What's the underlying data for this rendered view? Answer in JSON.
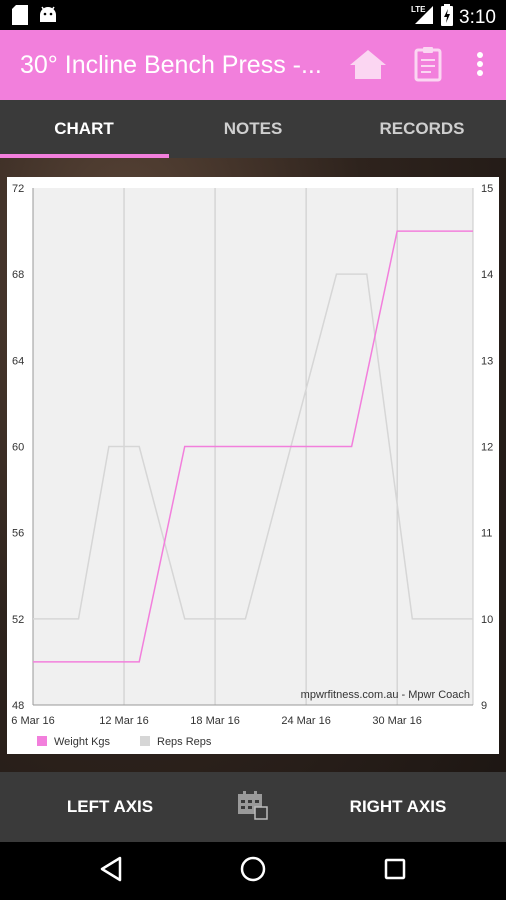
{
  "status_bar": {
    "time": "3:10",
    "network": "LTE",
    "left_icons": [
      "sd-card-icon",
      "android-icon"
    ],
    "right_icons": [
      "lte-signal-icon",
      "battery-charging-icon"
    ]
  },
  "app_bar": {
    "title": "30° Incline Bench Press -...",
    "actions": [
      "home-icon",
      "clipboard-icon",
      "more-vert-icon"
    ],
    "color": "#f27fdc"
  },
  "tabs": [
    {
      "label": "CHART",
      "active": true
    },
    {
      "label": "NOTES",
      "active": false
    },
    {
      "label": "RECORDS",
      "active": false
    }
  ],
  "chart_data": {
    "type": "line",
    "x_tick_labels": [
      "6 Mar 16",
      "12 Mar 16",
      "18 Mar 16",
      "24 Mar 16",
      "30 Mar 16"
    ],
    "x_range": [
      6,
      35
    ],
    "left_axis": {
      "ylim": [
        48,
        72
      ],
      "ticks": [
        48,
        52,
        56,
        60,
        64,
        68,
        72
      ]
    },
    "right_axis": {
      "ylim": [
        9,
        15
      ],
      "ticks": [
        9,
        10,
        11,
        12,
        13,
        14,
        15
      ]
    },
    "grid": true,
    "legend_position": "bottom-left",
    "watermark": "mpwrfitness.com.au - Mpwr Coach",
    "series": [
      {
        "name": "Weight Kgs",
        "axis": "left",
        "color": "#f27fdc",
        "points": [
          {
            "x": 6,
            "y": 50
          },
          {
            "x": 13,
            "y": 50
          },
          {
            "x": 16,
            "y": 60
          },
          {
            "x": 27,
            "y": 60
          },
          {
            "x": 30,
            "y": 70
          },
          {
            "x": 35,
            "y": 70
          }
        ]
      },
      {
        "name": "Reps Reps",
        "axis": "right",
        "color": "#d6d6d6",
        "points": [
          {
            "x": 6,
            "y": 10
          },
          {
            "x": 9,
            "y": 10
          },
          {
            "x": 11,
            "y": 12
          },
          {
            "x": 13,
            "y": 12
          },
          {
            "x": 16,
            "y": 10
          },
          {
            "x": 20,
            "y": 10
          },
          {
            "x": 26,
            "y": 14
          },
          {
            "x": 28,
            "y": 14
          },
          {
            "x": 31,
            "y": 10
          },
          {
            "x": 35,
            "y": 10
          }
        ]
      }
    ]
  },
  "bottom_bar": {
    "left_axis_label": "LEFT AXIS",
    "right_axis_label": "RIGHT AXIS",
    "center_icon": "calendar-icon"
  },
  "nav_bar": {
    "buttons": [
      "back-icon",
      "home-circle-icon",
      "recents-icon"
    ]
  }
}
